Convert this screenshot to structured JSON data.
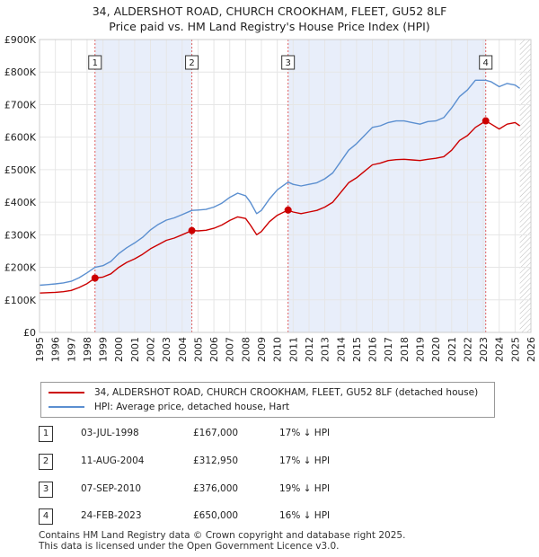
{
  "title_line1": "34, ALDERSHOT ROAD, CHURCH CROOKHAM, FLEET, GU52 8LF",
  "title_line2": "Price paid vs. HM Land Registry's House Price Index (HPI)",
  "colors": {
    "property": "#cc0000",
    "hpi": "#5b8fd0",
    "shade": "#e8eefa",
    "marker_line": "#e06060"
  },
  "chart_data": {
    "type": "line",
    "title": "Price paid vs. HM Land Registry's House Price Index (HPI)",
    "xlim": [
      1995,
      2026
    ],
    "ylim": [
      0,
      900000
    ],
    "x_ticks": [
      "1995",
      "1996",
      "1997",
      "1998",
      "1999",
      "2000",
      "2001",
      "2002",
      "2003",
      "2004",
      "2005",
      "2006",
      "2007",
      "2008",
      "2009",
      "2010",
      "2011",
      "2012",
      "2013",
      "2014",
      "2015",
      "2016",
      "2017",
      "2018",
      "2019",
      "2020",
      "2021",
      "2022",
      "2023",
      "2024",
      "2025",
      "2026"
    ],
    "y_ticks": [
      {
        "value": 0,
        "label": "£0"
      },
      {
        "value": 100000,
        "label": "£100K"
      },
      {
        "value": 200000,
        "label": "£200K"
      },
      {
        "value": 300000,
        "label": "£300K"
      },
      {
        "value": 400000,
        "label": "£400K"
      },
      {
        "value": 500000,
        "label": "£500K"
      },
      {
        "value": 600000,
        "label": "£600K"
      },
      {
        "value": 700000,
        "label": "£700K"
      },
      {
        "value": 800000,
        "label": "£800K"
      },
      {
        "value": 900000,
        "label": "£900K"
      }
    ],
    "shaded_periods": [
      [
        1998.5,
        2004.61
      ],
      [
        2010.68,
        2023.15
      ]
    ],
    "series": [
      {
        "name": "34, ALDERSHOT ROAD, CHURCH CROOKHAM, FLEET, GU52 8LF (detached house)",
        "x": [
          1995,
          1995.5,
          1996,
          1996.5,
          1997,
          1997.5,
          1998,
          1998.5,
          1999,
          1999.5,
          2000,
          2000.5,
          2001,
          2001.5,
          2002,
          2002.5,
          2003,
          2003.5,
          2004,
          2004.61,
          2005,
          2005.5,
          2006,
          2006.5,
          2007,
          2007.5,
          2008,
          2008.3,
          2008.7,
          2009,
          2009.5,
          2010,
          2010.68,
          2011,
          2011.5,
          2012,
          2012.5,
          2013,
          2013.5,
          2014,
          2014.5,
          2015,
          2015.5,
          2016,
          2016.5,
          2017,
          2017.5,
          2018,
          2018.5,
          2019,
          2019.5,
          2020,
          2020.5,
          2021,
          2021.5,
          2022,
          2022.5,
          2023.15,
          2023.5,
          2024,
          2024.5,
          2025,
          2025.3
        ],
        "y": [
          121000,
          122000,
          123000,
          125000,
          129000,
          138000,
          150000,
          167000,
          170000,
          180000,
          200000,
          215000,
          226000,
          240000,
          257000,
          270000,
          283000,
          290000,
          300000,
          312950,
          312000,
          314000,
          320000,
          330000,
          344000,
          355000,
          350000,
          330000,
          300000,
          310000,
          340000,
          360000,
          376000,
          370000,
          365000,
          370000,
          375000,
          385000,
          400000,
          430000,
          460000,
          475000,
          495000,
          515000,
          520000,
          528000,
          531000,
          532000,
          530000,
          528000,
          532000,
          535000,
          540000,
          560000,
          590000,
          605000,
          630000,
          650000,
          640000,
          625000,
          640000,
          645000,
          635000
        ]
      },
      {
        "name": "HPI: Average price, detached house, Hart",
        "x": [
          1995,
          1995.5,
          1996,
          1996.5,
          1997,
          1997.5,
          1998,
          1998.5,
          1999,
          1999.5,
          2000,
          2000.5,
          2001,
          2001.5,
          2002,
          2002.5,
          2003,
          2003.5,
          2004,
          2004.61,
          2005,
          2005.5,
          2006,
          2006.5,
          2007,
          2007.5,
          2008,
          2008.3,
          2008.7,
          2009,
          2009.5,
          2010,
          2010.68,
          2011,
          2011.5,
          2012,
          2012.5,
          2013,
          2013.5,
          2014,
          2014.5,
          2015,
          2015.5,
          2016,
          2016.5,
          2017,
          2017.5,
          2018,
          2018.5,
          2019,
          2019.5,
          2020,
          2020.5,
          2021,
          2021.5,
          2022,
          2022.5,
          2023.15,
          2023.5,
          2024,
          2024.5,
          2025,
          2025.3
        ],
        "y": [
          145000,
          147000,
          149000,
          152000,
          157000,
          168000,
          183000,
          200000,
          205000,
          218000,
          242000,
          260000,
          275000,
          292000,
          315000,
          332000,
          345000,
          352000,
          362000,
          375000,
          376000,
          378000,
          385000,
          397000,
          415000,
          428000,
          420000,
          400000,
          365000,
          375000,
          410000,
          438000,
          462000,
          455000,
          450000,
          455000,
          460000,
          472000,
          490000,
          525000,
          560000,
          580000,
          605000,
          630000,
          635000,
          645000,
          650000,
          650000,
          645000,
          640000,
          648000,
          650000,
          660000,
          690000,
          725000,
          745000,
          775000,
          775000,
          770000,
          755000,
          765000,
          760000,
          750000
        ]
      }
    ],
    "sales": [
      {
        "num": "1",
        "x": 1998.5,
        "price": 167000
      },
      {
        "num": "2",
        "x": 2004.61,
        "price": 312950
      },
      {
        "num": "3",
        "x": 2010.68,
        "price": 376000
      },
      {
        "num": "4",
        "x": 2023.15,
        "price": 650000
      }
    ]
  },
  "legend": {
    "property": "34, ALDERSHOT ROAD, CHURCH CROOKHAM, FLEET, GU52 8LF (detached house)",
    "hpi": "HPI: Average price, detached house, Hart"
  },
  "sales_table": [
    {
      "num": "1",
      "date": "03-JUL-1998",
      "price": "£167,000",
      "hpi": "17% ↓ HPI"
    },
    {
      "num": "2",
      "date": "11-AUG-2004",
      "price": "£312,950",
      "hpi": "17% ↓ HPI"
    },
    {
      "num": "3",
      "date": "07-SEP-2010",
      "price": "£376,000",
      "hpi": "19% ↓ HPI"
    },
    {
      "num": "4",
      "date": "24-FEB-2023",
      "price": "£650,000",
      "hpi": "16% ↓ HPI"
    }
  ],
  "footer": {
    "line1": "Contains HM Land Registry data © Crown copyright and database right 2025.",
    "line2": "This data is licensed under the Open Government Licence v3.0."
  }
}
